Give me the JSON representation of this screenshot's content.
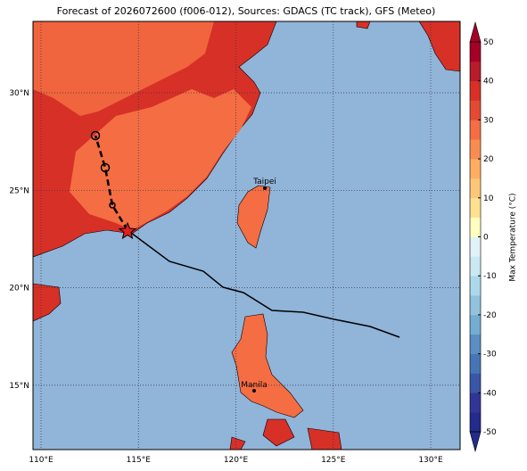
{
  "map": {
    "title": "Forecast of 2026072600 (f006-012), Sources: GDACS (TC track), GFS (Meteo)",
    "lon_labels": [
      "110°E",
      "115°E",
      "120°E",
      "125°E",
      "130°E"
    ],
    "lat_labels": [
      "30°N",
      "25°N",
      "20°N",
      "15°N"
    ],
    "cities": [
      "Taipei",
      "Manila"
    ]
  },
  "colorbar": {
    "label": "Max Temperature (°C)",
    "lim": [
      -50,
      50
    ],
    "ticks": [
      -50,
      -40,
      -30,
      -20,
      -10,
      0,
      10,
      20,
      30,
      40,
      50
    ],
    "colors": [
      "#232b8c",
      "#313695",
      "#3a56a6",
      "#4575b4",
      "#5b8ec2",
      "#74add1",
      "#92c2de",
      "#abd9e9",
      "#cae8f2",
      "#e0f3f8",
      "#ffffbf",
      "#fee090",
      "#fdc678",
      "#fdae61",
      "#f88d52",
      "#f46d43",
      "#e34a33",
      "#d73027",
      "#b81b2c",
      "#a50026"
    ]
  }
}
